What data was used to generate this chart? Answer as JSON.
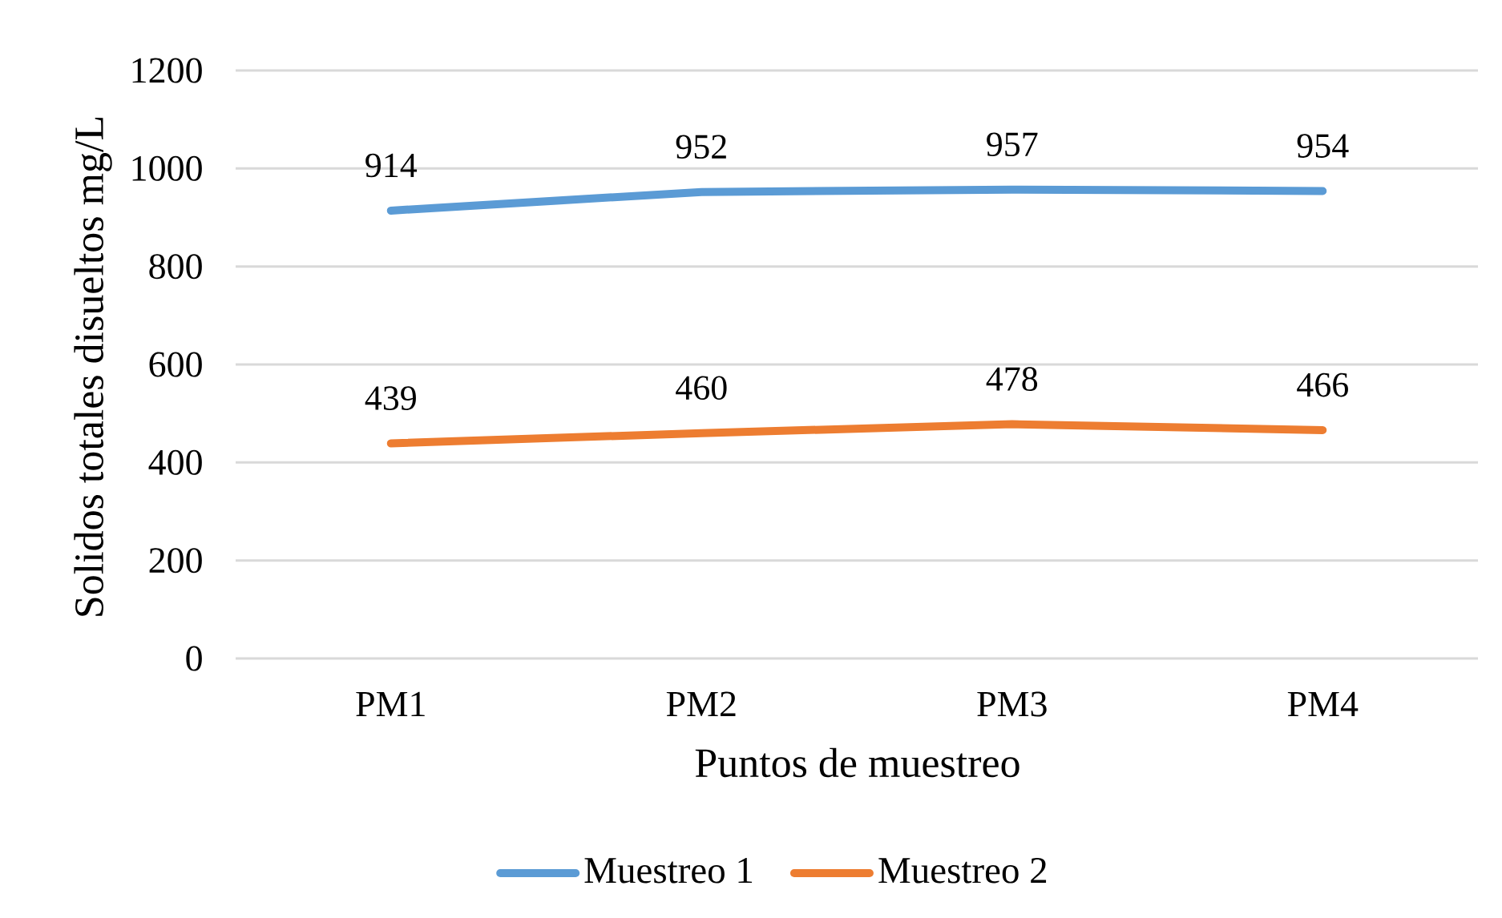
{
  "chart_data": {
    "type": "line",
    "xlabel": "Puntos de muestreo",
    "ylabel": "Solidos totales disueltos mg/L",
    "categories": [
      "PM1",
      "PM2",
      "PM3",
      "PM4"
    ],
    "series": [
      {
        "name": "Muestreo 1",
        "color": "#5b9bd5",
        "values": [
          914,
          952,
          957,
          954
        ]
      },
      {
        "name": "Muestreo 2",
        "color": "#ed7d31",
        "values": [
          439,
          460,
          478,
          466
        ]
      }
    ],
    "ylim": [
      0,
      1200
    ],
    "yticks": [
      0,
      200,
      400,
      600,
      800,
      1000,
      1200
    ],
    "grid": "y",
    "legend": "bottom",
    "data_labels": true
  }
}
